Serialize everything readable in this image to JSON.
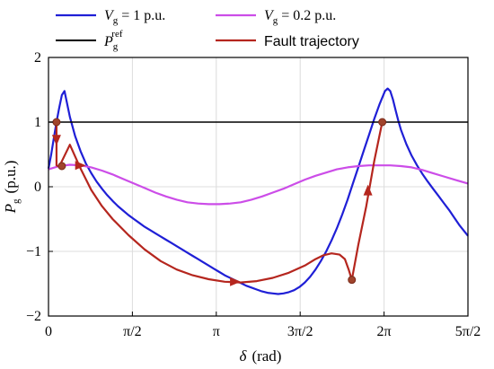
{
  "chart_data": {
    "type": "line",
    "xlabel": {
      "symbol": "δ",
      "unit": "(rad)"
    },
    "ylabel": {
      "symbol": "P",
      "sub": "g",
      "unit": "(p.u.)"
    },
    "xlim": [
      0,
      7.854
    ],
    "ylim": [
      -2,
      2
    ],
    "grid": true,
    "x_ticks": [
      {
        "value": 0,
        "label": "0"
      },
      {
        "value": 1.5708,
        "label": "π/2"
      },
      {
        "value": 3.1416,
        "label": "π"
      },
      {
        "value": 4.7124,
        "label": "3π/2"
      },
      {
        "value": 6.2832,
        "label": "2π"
      },
      {
        "value": 7.854,
        "label": "5π/2"
      }
    ],
    "y_ticks": [
      {
        "value": -2,
        "label": "−2"
      },
      {
        "value": -1,
        "label": "−1"
      },
      {
        "value": 0,
        "label": "0"
      },
      {
        "value": 1,
        "label": "1"
      },
      {
        "value": 2,
        "label": "2"
      }
    ],
    "legend": {
      "placement": "top",
      "entries": [
        {
          "key": "vg1",
          "symbol": "V",
          "sub": "g",
          "text": " = 1 p.u.",
          "color": "#1f1fd6"
        },
        {
          "key": "vg02",
          "symbol": "V",
          "sub": "g",
          "text": " = 0.2 p.u.",
          "color": "#cc4de8"
        },
        {
          "key": "pref",
          "symbol": "P",
          "sub": "g",
          "sup": "ref",
          "text": "",
          "color": "#000000"
        },
        {
          "key": "fault",
          "symbol": "",
          "sub": "",
          "text": "Fault trajectory",
          "color": "#b5261e"
        }
      ]
    },
    "series": [
      {
        "key": "vg1",
        "color": "#1f1fd6",
        "x": [
          0,
          0.05,
          0.1,
          0.15,
          0.2,
          0.25,
          0.3,
          0.4,
          0.5,
          0.6,
          0.7,
          0.8,
          0.9,
          1.0,
          1.1,
          1.2,
          1.3,
          1.4,
          1.5,
          1.6,
          1.7,
          1.8,
          1.9,
          2.0,
          2.1,
          2.2,
          2.3,
          2.4,
          2.5,
          2.6,
          2.7,
          2.8,
          2.9,
          3.0,
          3.1,
          3.2,
          3.3,
          3.4,
          3.5,
          3.6,
          3.7,
          3.8,
          3.9,
          4.0,
          4.1,
          4.2,
          4.3,
          4.4,
          4.5,
          4.6,
          4.7,
          4.8,
          4.9,
          5.0,
          5.1,
          5.2,
          5.3,
          5.4,
          5.5,
          5.6,
          5.7,
          5.8,
          5.9,
          6.0,
          6.1,
          6.2,
          6.3,
          6.35,
          6.4,
          6.45,
          6.5,
          6.55,
          6.6,
          6.7,
          6.8,
          6.9,
          7.0,
          7.1,
          7.2,
          7.3,
          7.4,
          7.5,
          7.6,
          7.7,
          7.854
        ],
        "y": [
          0.28,
          0.5,
          0.75,
          1.0,
          1.22,
          1.42,
          1.48,
          1.08,
          0.78,
          0.55,
          0.36,
          0.21,
          0.08,
          -0.03,
          -0.13,
          -0.22,
          -0.3,
          -0.37,
          -0.44,
          -0.5,
          -0.56,
          -0.62,
          -0.67,
          -0.72,
          -0.77,
          -0.82,
          -0.87,
          -0.92,
          -0.97,
          -1.02,
          -1.07,
          -1.12,
          -1.17,
          -1.22,
          -1.27,
          -1.32,
          -1.37,
          -1.41,
          -1.45,
          -1.49,
          -1.53,
          -1.56,
          -1.59,
          -1.62,
          -1.64,
          -1.65,
          -1.66,
          -1.65,
          -1.63,
          -1.6,
          -1.55,
          -1.48,
          -1.39,
          -1.28,
          -1.15,
          -1.0,
          -0.83,
          -0.64,
          -0.43,
          -0.2,
          0.05,
          0.3,
          0.55,
          0.8,
          1.05,
          1.28,
          1.48,
          1.52,
          1.48,
          1.35,
          1.18,
          1.02,
          0.88,
          0.66,
          0.48,
          0.33,
          0.2,
          0.08,
          -0.03,
          -0.14,
          -0.25,
          -0.36,
          -0.48,
          -0.6,
          -0.76
        ]
      },
      {
        "key": "vg02",
        "color": "#cc4de8",
        "x": [
          0,
          0.2,
          0.4,
          0.6,
          0.8,
          1.0,
          1.2,
          1.4,
          1.6,
          1.8,
          2.0,
          2.2,
          2.4,
          2.6,
          2.8,
          3.0,
          3.2,
          3.4,
          3.6,
          3.8,
          4.0,
          4.2,
          4.4,
          4.6,
          4.8,
          5.0,
          5.2,
          5.4,
          5.6,
          5.8,
          6.0,
          6.2,
          6.4,
          6.6,
          6.8,
          7.0,
          7.2,
          7.4,
          7.6,
          7.854
        ],
        "y": [
          0.27,
          0.32,
          0.34,
          0.33,
          0.3,
          0.25,
          0.19,
          0.12,
          0.05,
          -0.02,
          -0.09,
          -0.15,
          -0.2,
          -0.24,
          -0.26,
          -0.27,
          -0.27,
          -0.26,
          -0.24,
          -0.2,
          -0.15,
          -0.09,
          -0.03,
          0.04,
          0.11,
          0.17,
          0.22,
          0.27,
          0.3,
          0.32,
          0.33,
          0.33,
          0.33,
          0.32,
          0.3,
          0.26,
          0.21,
          0.16,
          0.11,
          0.05
        ]
      },
      {
        "key": "pref",
        "color": "#000000",
        "x": [
          0,
          7.854
        ],
        "y": [
          1,
          1
        ]
      },
      {
        "key": "fault",
        "color": "#b5261e",
        "x": [
          0.15,
          0.15,
          0.2,
          0.4,
          0.6,
          0.8,
          1.0,
          1.2,
          1.5,
          1.8,
          2.1,
          2.4,
          2.7,
          3.0,
          3.3,
          3.6,
          3.9,
          4.2,
          4.5,
          4.8,
          5.0,
          5.15,
          5.3,
          5.45,
          5.55,
          5.62,
          5.68,
          5.8,
          5.95,
          6.1,
          6.25
        ],
        "y": [
          1.0,
          0.33,
          0.31,
          0.65,
          0.28,
          -0.05,
          -0.3,
          -0.5,
          -0.75,
          -0.97,
          -1.15,
          -1.28,
          -1.37,
          -1.43,
          -1.47,
          -1.48,
          -1.46,
          -1.41,
          -1.33,
          -1.22,
          -1.12,
          -1.06,
          -1.03,
          -1.05,
          -1.12,
          -1.28,
          -1.44,
          -0.9,
          -0.3,
          0.4,
          1.0
        ]
      }
    ],
    "markers": [
      {
        "x": 0.15,
        "y": 1.0
      },
      {
        "x": 0.25,
        "y": 0.32
      },
      {
        "x": 6.25,
        "y": 1.0
      },
      {
        "x": 5.68,
        "y": -1.44
      }
    ],
    "arrows": [
      {
        "x": 0.15,
        "y": 0.72,
        "dir": "down"
      },
      {
        "x": 0.6,
        "y": 0.33,
        "dir": "right"
      },
      {
        "x": 3.5,
        "y": -1.47,
        "dir": "right"
      },
      {
        "x": 5.98,
        "y": -0.05,
        "dir": "up"
      }
    ]
  }
}
